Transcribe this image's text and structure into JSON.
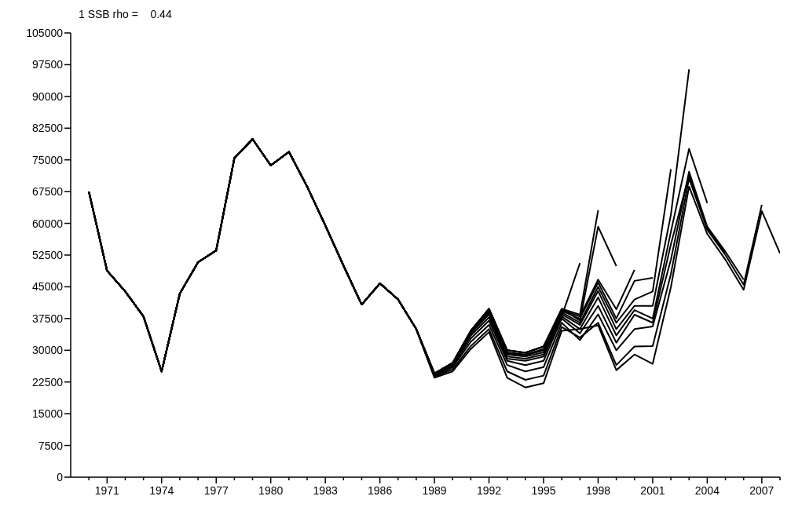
{
  "chart_data": {
    "type": "line",
    "title": "1 SSB rho =    0.44",
    "x": [
      1970,
      1971,
      1972,
      1973,
      1974,
      1975,
      1976,
      1977,
      1978,
      1979,
      1980,
      1981,
      1982,
      1983,
      1984,
      1985,
      1986,
      1987,
      1988,
      1989,
      1990,
      1991,
      1992,
      1993,
      1994,
      1995,
      1996,
      1997,
      1998,
      1999,
      2000,
      2001,
      2002,
      2003,
      2004,
      2005,
      2006,
      2007,
      2008
    ],
    "xlim": [
      1969,
      2008
    ],
    "xticks": [
      {
        "value": 1970,
        "label": null
      },
      1971,
      {
        "value": 1972,
        "label": null
      },
      {
        "value": 1973,
        "label": null
      },
      1974,
      {
        "value": 1975,
        "label": null
      },
      {
        "value": 1976,
        "label": null
      },
      1977,
      {
        "value": 1978,
        "label": null
      },
      {
        "value": 1979,
        "label": null
      },
      1980,
      {
        "value": 1981,
        "label": null
      },
      {
        "value": 1982,
        "label": null
      },
      1983,
      {
        "value": 1984,
        "label": null
      },
      {
        "value": 1985,
        "label": null
      },
      1986,
      {
        "value": 1987,
        "label": null
      },
      {
        "value": 1988,
        "label": null
      },
      1989,
      {
        "value": 1990,
        "label": null
      },
      {
        "value": 1991,
        "label": null
      },
      1992,
      {
        "value": 1993,
        "label": null
      },
      {
        "value": 1994,
        "label": null
      },
      1995,
      {
        "value": 1996,
        "label": null
      },
      {
        "value": 1997,
        "label": null
      },
      1998,
      {
        "value": 1999,
        "label": null
      },
      {
        "value": 2000,
        "label": null
      },
      2001,
      {
        "value": 2002,
        "label": null
      },
      {
        "value": 2003,
        "label": null
      },
      2004,
      {
        "value": 2005,
        "label": null
      },
      {
        "value": 2006,
        "label": null
      },
      2007,
      {
        "value": 2008,
        "label": null
      }
    ],
    "ylim": [
      0,
      105000
    ],
    "yticks": [
      0,
      7500,
      15000,
      22500,
      30000,
      37500,
      45000,
      52500,
      60000,
      67500,
      75000,
      82500,
      90000,
      97500,
      105000
    ],
    "grid": false,
    "legend": false,
    "marker": "none",
    "line_style": "solid",
    "series": [
      {
        "color": "#000000",
        "values": [
          67500,
          48800,
          43900,
          38000,
          25000,
          43400,
          50800,
          53600,
          75400,
          79900,
          73700,
          76900,
          68700,
          59500,
          50000,
          40800,
          45800,
          42000,
          35000,
          23500,
          25000,
          30300,
          34300,
          23500,
          21200,
          22200,
          34600,
          35000,
          35900,
          25300,
          29000,
          26800,
          44900,
          68700,
          57500,
          51400,
          44300,
          62900,
          52900
        ]
      },
      {
        "color": "#000000",
        "values": [
          67500,
          48800,
          43900,
          38000,
          25000,
          43400,
          50800,
          53600,
          75400,
          79900,
          73700,
          76900,
          68700,
          59500,
          50000,
          40800,
          45800,
          42000,
          35000,
          23700,
          25500,
          31000,
          35000,
          25000,
          23000,
          24000,
          35500,
          33000,
          36500,
          26500,
          30900,
          31000,
          48000,
          70600,
          58500,
          52500,
          45500,
          64400,
          null
        ]
      },
      {
        "color": "#000000",
        "values": [
          67500,
          48800,
          43900,
          38000,
          25000,
          43400,
          50800,
          53600,
          75400,
          79900,
          73700,
          76900,
          68700,
          59500,
          50000,
          40800,
          45800,
          42000,
          35000,
          23900,
          26000,
          32000,
          36000,
          26500,
          25000,
          26000,
          36500,
          32400,
          38500,
          30000,
          35000,
          35600,
          51400,
          72200,
          59200,
          53300,
          46700,
          null,
          null
        ]
      },
      {
        "color": "#000000",
        "values": [
          67500,
          48800,
          43900,
          38000,
          25000,
          43400,
          50800,
          53600,
          75400,
          79900,
          73700,
          76900,
          68700,
          59500,
          50000,
          40800,
          45800,
          42000,
          35000,
          24000,
          26300,
          32800,
          37000,
          27500,
          26500,
          27500,
          37500,
          34000,
          40500,
          31800,
          38400,
          36500,
          55000,
          71500,
          58800,
          53000,
          null,
          null,
          null
        ]
      },
      {
        "color": "#000000",
        "values": [
          67500,
          48800,
          43900,
          38000,
          25000,
          43400,
          50800,
          53600,
          75400,
          79900,
          73700,
          76900,
          68700,
          59500,
          50000,
          40800,
          45800,
          42000,
          35000,
          24200,
          26500,
          33500,
          37800,
          28000,
          27500,
          28500,
          38000,
          35000,
          42500,
          33500,
          39500,
          37500,
          58000,
          77600,
          64800,
          null,
          null,
          null,
          null
        ]
      },
      {
        "color": "#000000",
        "values": [
          67500,
          48800,
          43900,
          38000,
          25000,
          43400,
          50800,
          53600,
          75400,
          79900,
          73700,
          76900,
          68700,
          59500,
          50000,
          40800,
          45800,
          42000,
          35000,
          24300,
          26700,
          34000,
          38500,
          28500,
          28000,
          29000,
          38500,
          36000,
          44000,
          35000,
          40500,
          40500,
          62000,
          96400,
          null,
          null,
          null,
          null,
          null
        ]
      },
      {
        "color": "#000000",
        "values": [
          67500,
          48800,
          43900,
          38000,
          25000,
          43400,
          50800,
          53600,
          75400,
          79900,
          73700,
          76900,
          68700,
          59500,
          50000,
          40800,
          45800,
          42000,
          35000,
          24400,
          26800,
          34300,
          39000,
          29000,
          28500,
          29500,
          39000,
          36500,
          45000,
          36500,
          42000,
          43900,
          72800,
          null,
          null,
          null,
          null,
          null,
          null
        ]
      },
      {
        "color": "#000000",
        "values": [
          67500,
          48800,
          43900,
          38000,
          25000,
          43400,
          50800,
          53600,
          75400,
          79900,
          73700,
          76900,
          68700,
          59500,
          50000,
          40800,
          45800,
          42000,
          35000,
          24500,
          26900,
          34500,
          39300,
          29300,
          28800,
          30000,
          39300,
          37500,
          46000,
          37500,
          46400,
          47100,
          null,
          null,
          null,
          null,
          null,
          null,
          null
        ]
      },
      {
        "color": "#000000",
        "values": [
          67500,
          48800,
          43900,
          38000,
          25000,
          43400,
          50800,
          53600,
          75400,
          79900,
          73700,
          76900,
          68700,
          59500,
          50000,
          40800,
          45800,
          42000,
          35000,
          24500,
          27000,
          34600,
          39500,
          29500,
          29000,
          30300,
          39500,
          38000,
          46700,
          39700,
          49000,
          null,
          null,
          null,
          null,
          null,
          null,
          null,
          null
        ]
      },
      {
        "color": "#000000",
        "values": [
          67500,
          48800,
          43900,
          38000,
          25000,
          43400,
          50800,
          53600,
          75400,
          79900,
          73700,
          76900,
          68700,
          59500,
          50000,
          40800,
          45800,
          42000,
          35000,
          24500,
          27000,
          34600,
          39800,
          30000,
          29400,
          30900,
          39800,
          37000,
          59200,
          49900,
          null,
          null,
          null,
          null,
          null,
          null,
          null,
          null,
          null
        ]
      },
      {
        "color": "#000000",
        "values": [
          67500,
          48800,
          43900,
          38000,
          25000,
          43400,
          50800,
          53600,
          75400,
          79900,
          73700,
          76900,
          68700,
          59500,
          50000,
          40800,
          45800,
          42000,
          35000,
          24500,
          27000,
          34600,
          39800,
          30000,
          29400,
          30900,
          39800,
          38400,
          63100,
          null,
          null,
          null,
          null,
          null,
          null,
          null,
          null,
          null,
          null
        ]
      },
      {
        "color": "#000000",
        "values": [
          67500,
          48800,
          43900,
          38000,
          25000,
          43400,
          50800,
          53600,
          75400,
          79900,
          73700,
          76900,
          68700,
          59500,
          50000,
          40800,
          45800,
          42000,
          35000,
          24500,
          27000,
          34600,
          39800,
          30000,
          29400,
          30900,
          38000,
          50600,
          null,
          null,
          null,
          null,
          null,
          null,
          null,
          null,
          null,
          null,
          null
        ]
      }
    ]
  }
}
